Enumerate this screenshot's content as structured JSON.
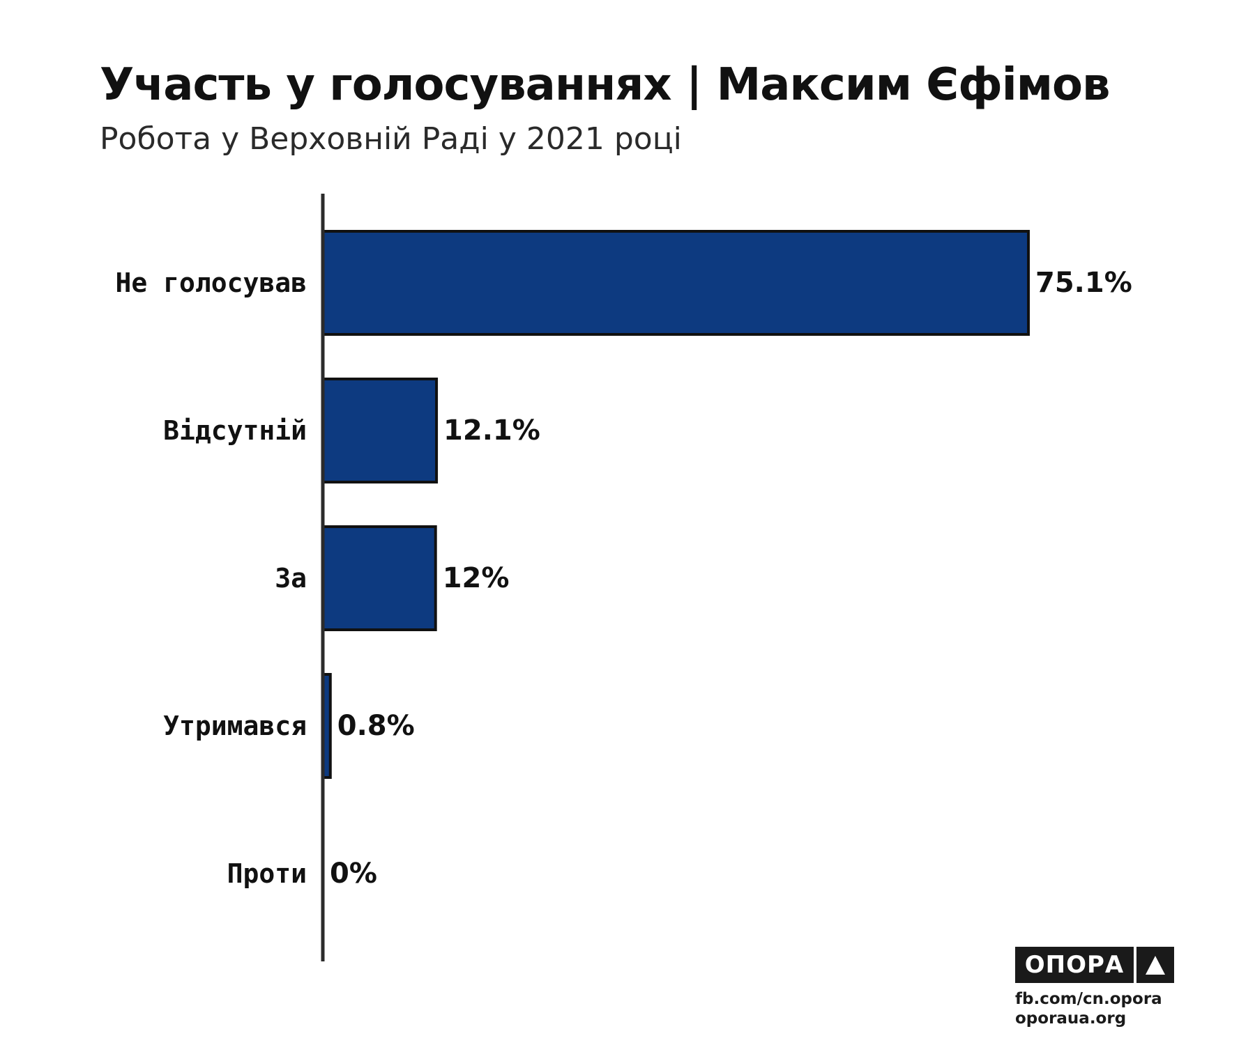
{
  "header": {
    "title": "Участь у голосуваннях | Максим Єфімов",
    "subtitle": "Робота у Верховній Раді у 2021 році"
  },
  "chart_data": {
    "type": "bar",
    "orientation": "horizontal",
    "categories": [
      "Не голосував",
      "Відсутній",
      "За",
      "Утримався",
      "Проти"
    ],
    "values": [
      75.1,
      12.1,
      12,
      0.8,
      0
    ],
    "value_labels": [
      "75.1%",
      "12.1%",
      "12%",
      "0.8%",
      "0%"
    ],
    "unit": "%",
    "xlim": [
      0,
      75.1
    ],
    "grid": false,
    "legend": "none",
    "bar_color": "#0d3a80",
    "bar_stroke": "#111111",
    "axis_color": "#2b2b2b"
  },
  "footer": {
    "logo_text": "ОПОРА",
    "links": [
      "fb.com/cn.opora",
      "oporaua.org"
    ]
  }
}
